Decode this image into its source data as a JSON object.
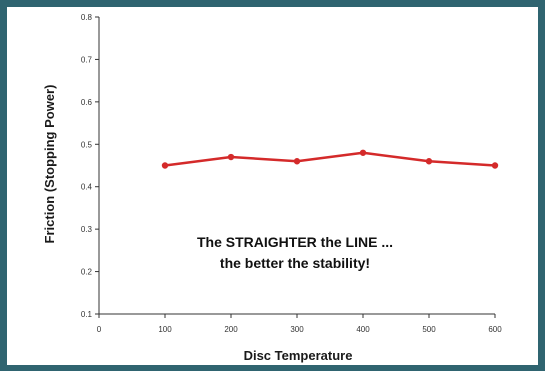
{
  "chart_data": {
    "type": "line",
    "title": "",
    "xlabel": "Disc Temperature",
    "ylabel": "Friction (Stopping Power)",
    "xlim": [
      0,
      600
    ],
    "ylim": [
      0.1,
      0.8
    ],
    "xticks": [
      0,
      100,
      200,
      300,
      400,
      500,
      600
    ],
    "yticks": [
      0.1,
      0.2,
      0.3,
      0.4,
      0.5,
      0.6,
      0.7,
      0.8
    ],
    "xtick_labels": [
      "0",
      "100",
      "200",
      "300",
      "400",
      "500",
      "600"
    ],
    "ytick_labels": [
      "0.1",
      "0.2",
      "0.3",
      "0.4",
      "0.5",
      "0.6",
      "0.7",
      "0.8"
    ],
    "grid": false,
    "legend": "none",
    "series": [
      {
        "color": "#d42a2a",
        "x": [
          100,
          200,
          300,
          400,
          500,
          600
        ],
        "y": [
          0.45,
          0.47,
          0.46,
          0.48,
          0.46,
          0.45
        ]
      }
    ],
    "annotation": [
      "The STRAIGHTER the LINE ...",
      "the better the stability!"
    ]
  },
  "colors": {
    "frame": "#2f6470",
    "axis": "#333333",
    "line": "#d42a2a"
  }
}
